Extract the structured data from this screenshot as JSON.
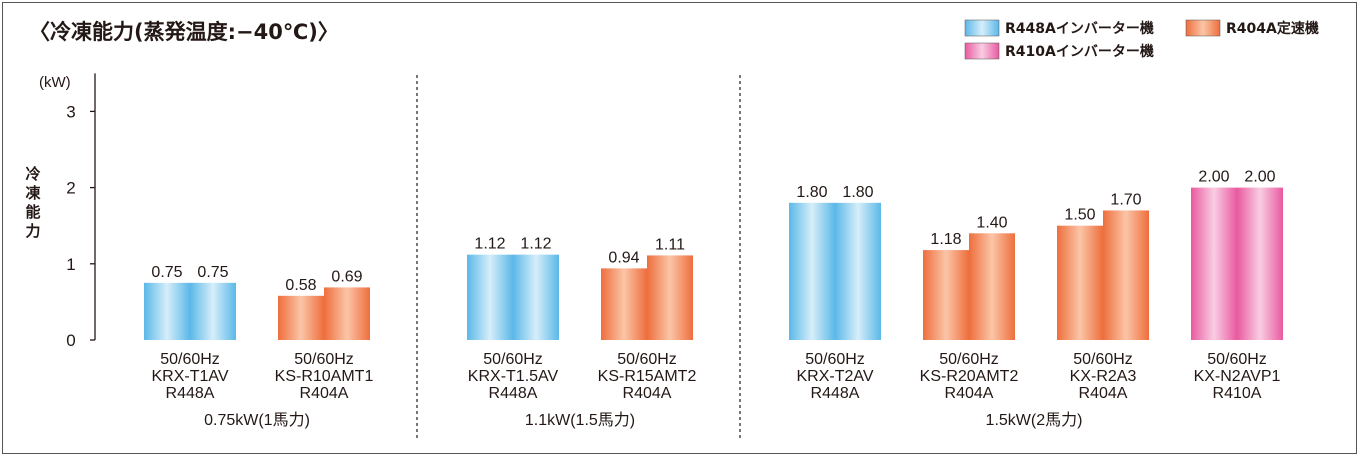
{
  "chart_data": {
    "type": "bar",
    "title": "〈冷凍能力(蒸発温度:−40℃)〉",
    "unit": "(kW)",
    "ylabel": "冷凍能力",
    "ylim": [
      0,
      3
    ],
    "yticks": [
      "0",
      "1",
      "2",
      "3"
    ],
    "grid": false,
    "legend_position": "top-right",
    "legend": [
      {
        "key": "R448A",
        "label": "R448Aインバーター機",
        "color": "#5bb8e8"
      },
      {
        "key": "R404A",
        "label": "R404A定速機",
        "color": "#f07a4a"
      },
      {
        "key": "R410A",
        "label": "R410Aインバーター機",
        "color": "#ec6aaa"
      }
    ],
    "groups": [
      {
        "label": "0.75kW(1馬力)",
        "products": [
          {
            "lines": [
              "50/60Hz",
              "KRX-T1AV",
              "R448A"
            ],
            "refrigerant": "R448A",
            "values": [
              0.75,
              0.75
            ],
            "labels": [
              "0.75",
              "0.75"
            ]
          },
          {
            "lines": [
              "50/60Hz",
              "KS-R10AMT1",
              "R404A"
            ],
            "refrigerant": "R404A",
            "values": [
              0.58,
              0.69
            ],
            "labels": [
              "0.58",
              "0.69"
            ]
          }
        ]
      },
      {
        "label": "1.1kW(1.5馬力)",
        "products": [
          {
            "lines": [
              "50/60Hz",
              "KRX-T1.5AV",
              "R448A"
            ],
            "refrigerant": "R448A",
            "values": [
              1.12,
              1.12
            ],
            "labels": [
              "1.12",
              "1.12"
            ]
          },
          {
            "lines": [
              "50/60Hz",
              "KS-R15AMT2",
              "R404A"
            ],
            "refrigerant": "R404A",
            "values": [
              0.94,
              1.11
            ],
            "labels": [
              "0.94",
              "1.11"
            ]
          }
        ]
      },
      {
        "label": "1.5kW(2馬力)",
        "products": [
          {
            "lines": [
              "50/60Hz",
              "KRX-T2AV",
              "R448A"
            ],
            "refrigerant": "R448A",
            "values": [
              1.8,
              1.8
            ],
            "labels": [
              "1.80",
              "1.80"
            ]
          },
          {
            "lines": [
              "50/60Hz",
              "KS-R20AMT2",
              "R404A"
            ],
            "refrigerant": "R404A",
            "values": [
              1.18,
              1.4
            ],
            "labels": [
              "1.18",
              "1.40"
            ]
          },
          {
            "lines": [
              "50/60Hz",
              "KX-R2A3",
              "R404A"
            ],
            "refrigerant": "R404A",
            "values": [
              1.5,
              1.7
            ],
            "labels": [
              "1.50",
              "1.70"
            ]
          },
          {
            "lines": [
              "50/60Hz",
              "KX-N2AVP1",
              "R410A"
            ],
            "refrigerant": "R410A",
            "values": [
              2.0,
              2.0
            ],
            "labels": [
              "2.00",
              "2.00"
            ]
          }
        ]
      }
    ]
  }
}
